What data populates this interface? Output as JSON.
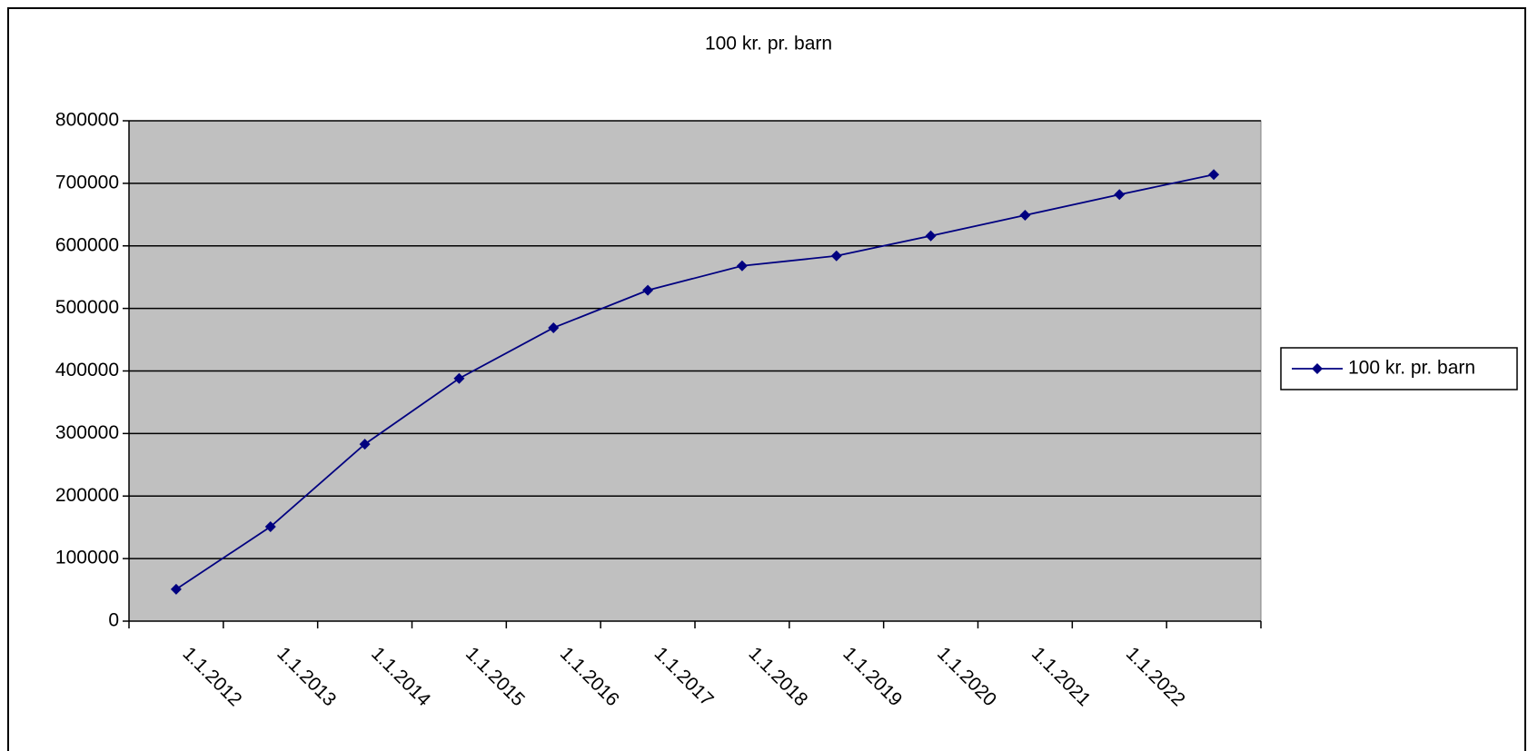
{
  "chart_data": {
    "type": "line",
    "title": "100 kr. pr. barn",
    "categories": [
      "1.1.2012",
      "1.1.2013",
      "1.1.2014",
      "1.1.2015",
      "1.1.2016",
      "1.1.2017",
      "1.1.2018",
      "1.1.2019",
      "1.1.2020",
      "1.1.2021",
      "1.1.2022",
      null
    ],
    "series": [
      {
        "name": "100 kr. pr. barn",
        "color": "#000080",
        "values": [
          51000,
          151000,
          283000,
          388000,
          469000,
          529000,
          568000,
          584000,
          616000,
          649000,
          682000,
          714000
        ]
      }
    ],
    "ylim": [
      0,
      800000
    ],
    "yticks": [
      0,
      100000,
      200000,
      300000,
      400000,
      500000,
      600000,
      700000,
      800000
    ],
    "grid": true,
    "legend": "right",
    "plot_background": "#c0c0c0"
  }
}
